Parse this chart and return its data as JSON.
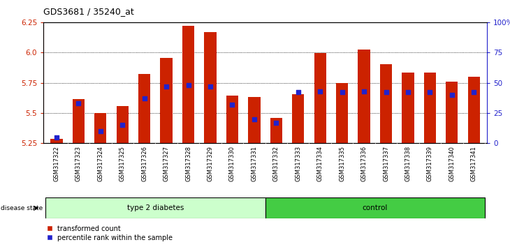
{
  "title": "GDS3681 / 35240_at",
  "samples": [
    "GSM317322",
    "GSM317323",
    "GSM317324",
    "GSM317325",
    "GSM317326",
    "GSM317327",
    "GSM317328",
    "GSM317329",
    "GSM317330",
    "GSM317331",
    "GSM317332",
    "GSM317333",
    "GSM317334",
    "GSM317335",
    "GSM317336",
    "GSM317337",
    "GSM317338",
    "GSM317339",
    "GSM317340",
    "GSM317341"
  ],
  "red_values": [
    5.285,
    5.615,
    5.5,
    5.555,
    5.825,
    5.955,
    6.22,
    6.17,
    5.645,
    5.635,
    5.46,
    5.655,
    5.995,
    5.75,
    6.025,
    5.905,
    5.835,
    5.835,
    5.76,
    5.8
  ],
  "blue_pct": [
    5,
    33,
    10,
    15,
    37,
    47,
    48,
    47,
    32,
    20,
    17,
    42,
    43,
    42,
    43,
    42,
    42,
    42,
    40,
    42
  ],
  "ymin": 5.25,
  "ymax": 6.25,
  "yticks_left": [
    5.25,
    5.5,
    5.75,
    6.0,
    6.25
  ],
  "yticks_right": [
    0,
    25,
    50,
    75,
    100
  ],
  "group1_label": "type 2 diabetes",
  "group2_label": "control",
  "group1_count": 10,
  "group2_count": 10,
  "legend1": "transformed count",
  "legend2": "percentile rank within the sample",
  "bar_color": "#cc2200",
  "dot_color": "#2222cc",
  "group1_facecolor": "#ccffcc",
  "group2_facecolor": "#44cc44",
  "disease_label": "disease state",
  "bar_width": 0.55
}
